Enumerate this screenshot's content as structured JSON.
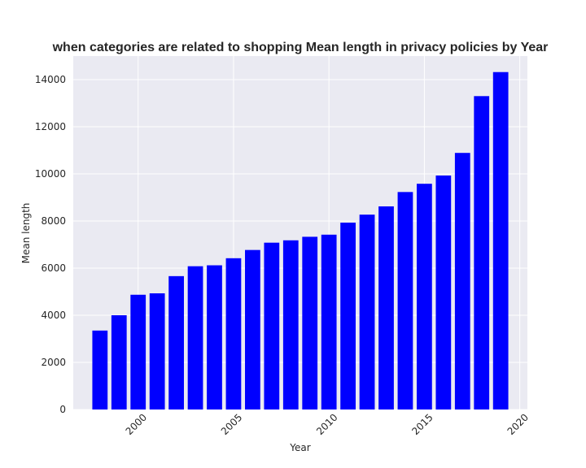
{
  "chart_data": {
    "type": "bar",
    "title": "when categories are related to shopping Mean length in privacy policies by Year",
    "xlabel": "Year",
    "ylabel": "Mean length",
    "x": [
      1998,
      1999,
      2000,
      2001,
      2002,
      2003,
      2004,
      2005,
      2006,
      2007,
      2008,
      2009,
      2010,
      2011,
      2012,
      2013,
      2014,
      2015,
      2016,
      2017,
      2018,
      2019
    ],
    "values": [
      3350,
      4000,
      4870,
      4930,
      5660,
      6080,
      6120,
      6420,
      6770,
      7080,
      7180,
      7330,
      7420,
      7930,
      8270,
      8620,
      9230,
      9580,
      9930,
      10890,
      13300,
      14320
    ],
    "xlim": [
      1996.6,
      2020.4
    ],
    "ylim": [
      0,
      15000
    ],
    "xticks": [
      2000,
      2005,
      2010,
      2015,
      2020
    ],
    "yticks": [
      0,
      2000,
      4000,
      6000,
      8000,
      10000,
      12000,
      14000
    ],
    "grid": true,
    "colors": {
      "bar": "#0000ff",
      "background": "#eaeaf2",
      "grid": "#ffffff"
    }
  }
}
